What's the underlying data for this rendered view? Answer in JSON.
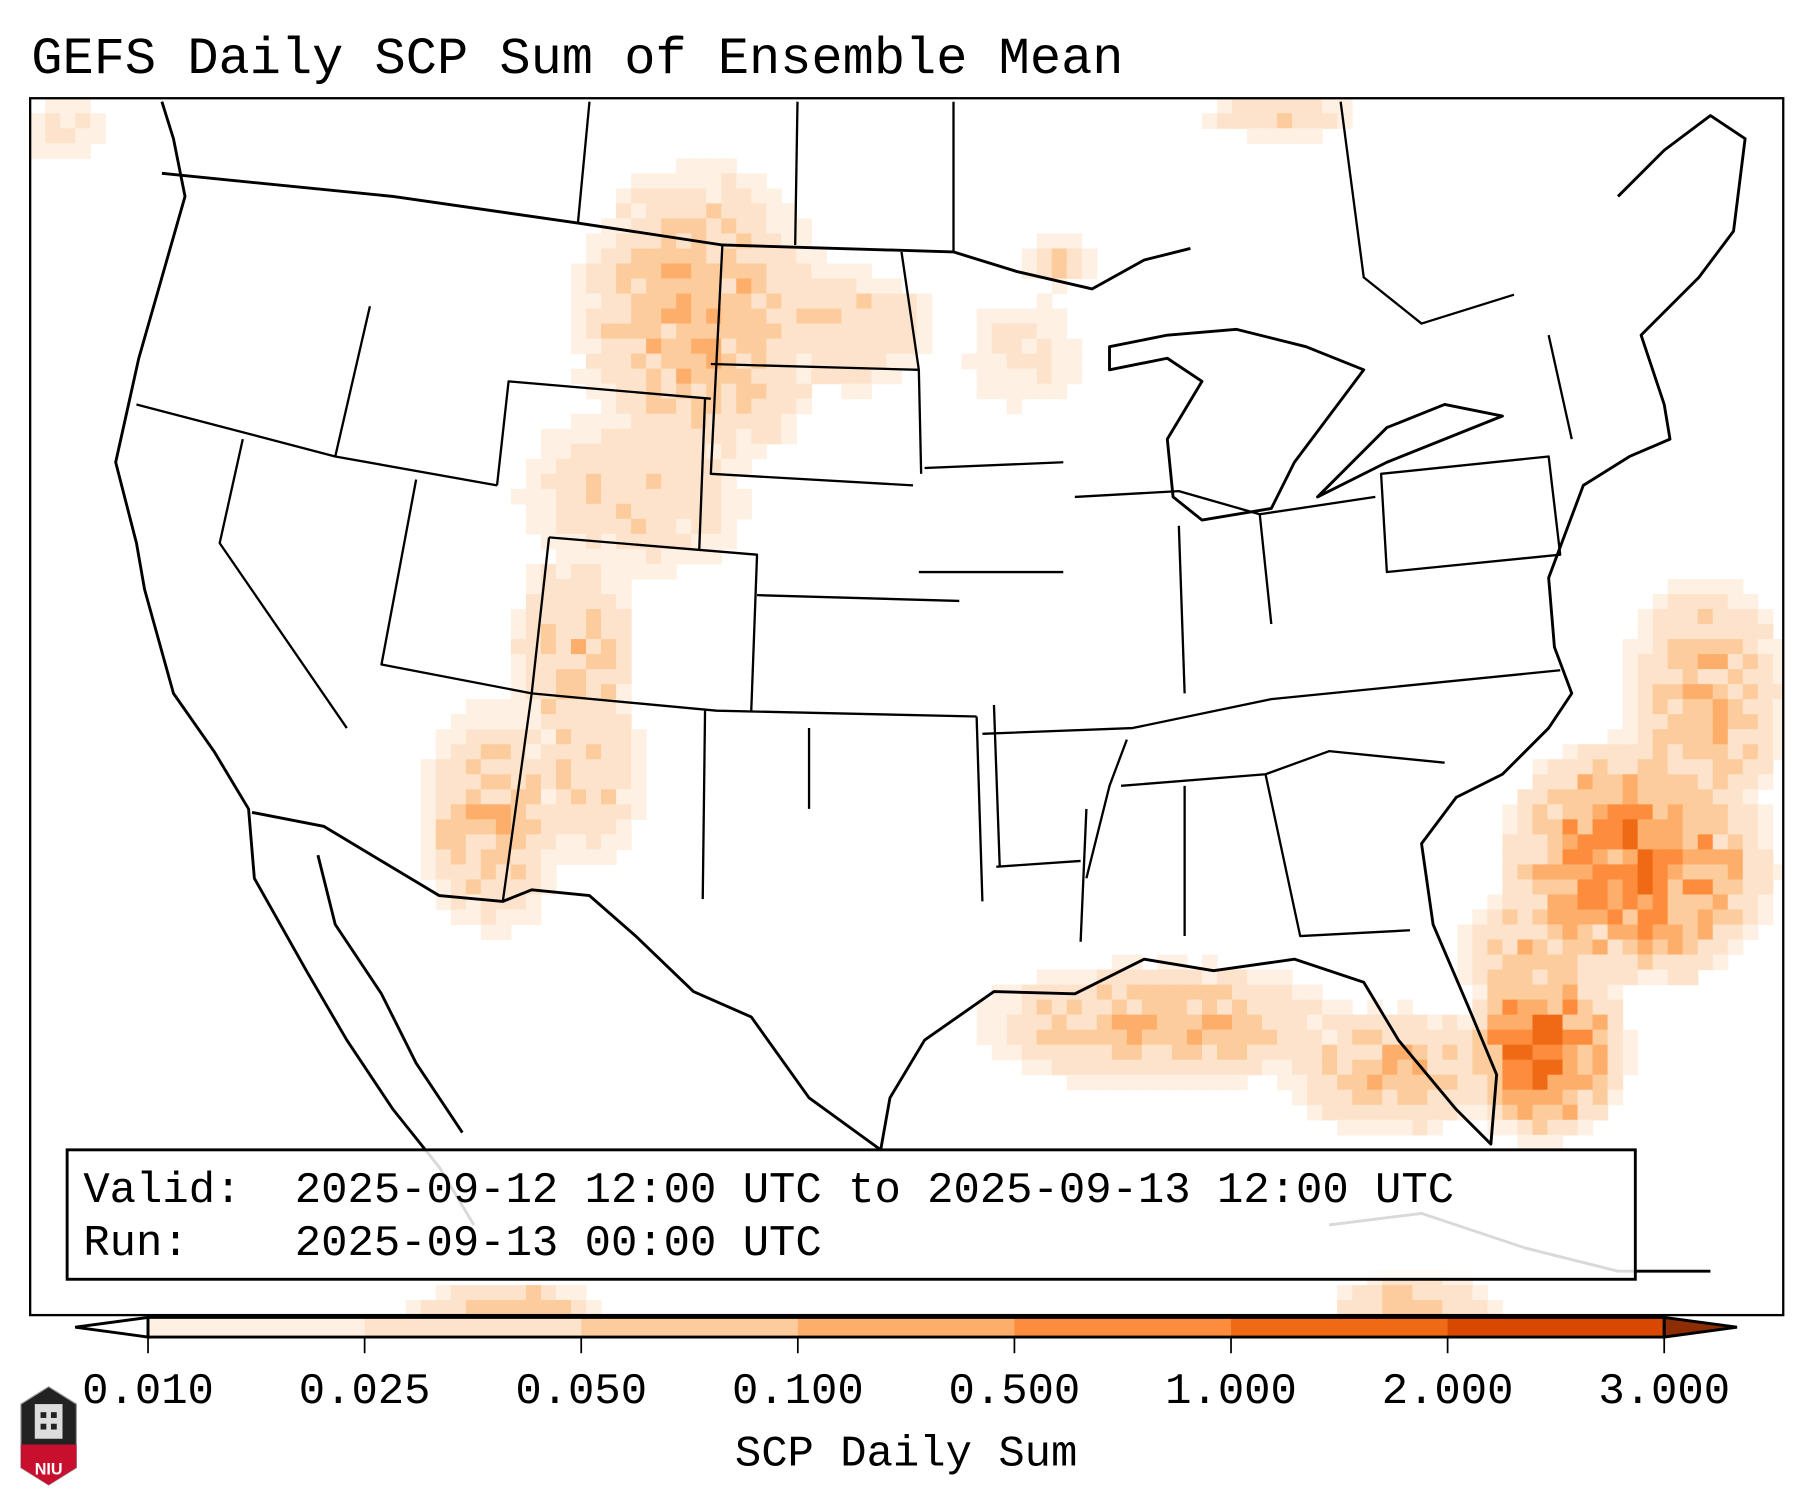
{
  "chart_data": {
    "type": "heatmap",
    "title": "GEFS Daily SCP Sum of Ensemble Mean",
    "colorbar": {
      "label": "SCP Daily Sum",
      "ticks": [
        "0.010",
        "0.025",
        "0.050",
        "0.100",
        "0.500",
        "1.000",
        "2.000",
        "3.000"
      ],
      "levels": [
        0.01,
        0.025,
        0.05,
        0.1,
        0.5,
        1.0,
        2.0,
        3.0
      ],
      "colors": [
        "#fef0e3",
        "#fde3cb",
        "#fdcc9c",
        "#fdae6b",
        "#fd8d3c",
        "#f06a15",
        "#d94801",
        "#8c2d04"
      ],
      "extend": "both"
    },
    "info_box": {
      "valid_label": "Valid:",
      "valid_value": "2025-09-12 12:00 UTC to 2025-09-13 12:00 UTC",
      "run_label": "Run:",
      "run_value": "2025-09-13 00:00 UTC"
    },
    "logo_text": "NIU"
  }
}
